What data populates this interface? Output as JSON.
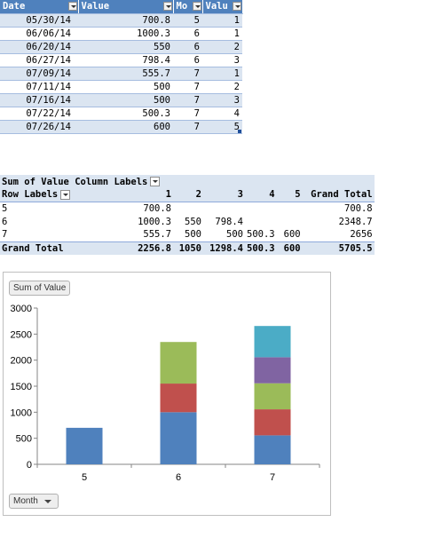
{
  "source_table": {
    "headers": [
      "Date",
      "Value",
      "Mo",
      "Valu"
    ],
    "rows": [
      [
        "05/30/14",
        "700.8",
        "5",
        "1"
      ],
      [
        "06/06/14",
        "1000.3",
        "6",
        "1"
      ],
      [
        "06/20/14",
        "550",
        "6",
        "2"
      ],
      [
        "06/27/14",
        "798.4",
        "6",
        "3"
      ],
      [
        "07/09/14",
        "555.7",
        "7",
        "1"
      ],
      [
        "07/11/14",
        "500",
        "7",
        "2"
      ],
      [
        "07/16/14",
        "500",
        "7",
        "3"
      ],
      [
        "07/22/14",
        "500.3",
        "7",
        "4"
      ],
      [
        "07/26/14",
        "600",
        "7",
        "5"
      ]
    ]
  },
  "pivot": {
    "title": "Sum of Value",
    "column_labels": "Column Labels",
    "row_labels": "Row Labels",
    "columns": [
      "1",
      "2",
      "3",
      "4",
      "5",
      "Grand Total"
    ],
    "rows": [
      {
        "label": "5",
        "cells": [
          "700.8",
          "",
          "",
          "",
          "",
          "700.8"
        ]
      },
      {
        "label": "6",
        "cells": [
          "1000.3",
          "550",
          "798.4",
          "",
          "",
          "2348.7"
        ]
      },
      {
        "label": "7",
        "cells": [
          "555.7",
          "500",
          "500",
          "500.3",
          "600",
          "2656"
        ]
      }
    ],
    "total": {
      "label": "Grand Total",
      "cells": [
        "2256.8",
        "1050",
        "1298.4",
        "500.3",
        "600",
        "5705.5"
      ]
    }
  },
  "chart_buttons": {
    "value_field": "Sum of Value",
    "axis_field": "Month"
  },
  "chart_data": {
    "type": "bar",
    "stacked": true,
    "categories": [
      "5",
      "6",
      "7"
    ],
    "series": [
      {
        "values": [
          700.8,
          1000.3,
          555.7
        ],
        "color": "#4f81bd"
      },
      {
        "values": [
          0,
          550,
          500
        ],
        "color": "#c0504d"
      },
      {
        "values": [
          0,
          798.4,
          500
        ],
        "color": "#9bbb59"
      },
      {
        "values": [
          0,
          0,
          500.3
        ],
        "color": "#8064a2"
      },
      {
        "values": [
          0,
          0,
          600
        ],
        "color": "#4bacc6"
      }
    ],
    "ylim": [
      0,
      3000
    ],
    "yticks": [
      0,
      500,
      1000,
      1500,
      2000,
      2500,
      3000
    ],
    "grid": false,
    "legend": "none"
  }
}
